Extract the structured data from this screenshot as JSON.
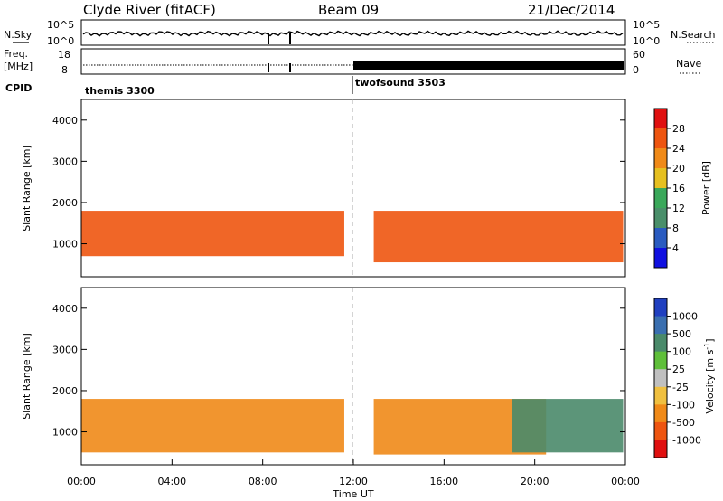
{
  "header": {
    "station": "Clyde River (fitACF)",
    "beam": "Beam 09",
    "date": "21/Dec/2014"
  },
  "aux_panels": {
    "nsky_label": "N.Sky",
    "nsky_ticks": [
      "10^5",
      "10^0"
    ],
    "nsearch_label": "N.Search",
    "nsearch_ticks": [
      "10^5",
      "10^0"
    ],
    "freq_label": "Freq.",
    "freq_unit": "[MHz]",
    "freq_ticks": [
      "18",
      "8"
    ],
    "nave_label": "Nave",
    "nave_ticks": [
      "60",
      "0"
    ],
    "cpid_label": "CPID",
    "cpid_segments": [
      {
        "name": "themis 3300",
        "start_hour": 0
      },
      {
        "name": "twofsound 3503",
        "start_hour": 12
      }
    ]
  },
  "chart_data": [
    {
      "type": "heatmap",
      "quantity": "Power",
      "ylabel": "Slant Range [km]",
      "xlim": [
        0,
        24
      ],
      "ylim": [
        200,
        4500
      ],
      "yticks": [
        1000,
        2000,
        3000,
        4000
      ],
      "colorbar": {
        "label": "Power [dB]",
        "ticks": [
          "4",
          "8",
          "12",
          "16",
          "20",
          "24",
          "28"
        ],
        "colors": [
          "#1010e0",
          "#2a5bc0",
          "#4a8f6a",
          "#3aa85a",
          "#e6c020",
          "#f08a18",
          "#ee5510",
          "#e01010"
        ]
      },
      "bands": [
        {
          "x_start": 0,
          "x_end": 11.6,
          "range_low": 700,
          "range_high": 1800,
          "value": 26
        },
        {
          "x_start": 12.9,
          "x_end": 23.9,
          "range_low": 550,
          "range_high": 1800,
          "value": 26
        }
      ]
    },
    {
      "type": "heatmap",
      "quantity": "Velocity",
      "ylabel": "Slant Range [km]",
      "xlabel": "Time UT",
      "xlim": [
        0,
        24
      ],
      "ylim": [
        200,
        4500
      ],
      "yticks": [
        1000,
        2000,
        3000,
        4000
      ],
      "xticks": [
        "00:00",
        "04:00",
        "08:00",
        "12:00",
        "16:00",
        "20:00",
        "00:00"
      ],
      "colorbar": {
        "label": "Velocity [m s",
        "label_superscript": "-1",
        "label_close": "]",
        "ticks": [
          "1000",
          "500",
          "100",
          "25",
          "-25",
          "-100",
          "-500",
          "-1000"
        ],
        "colors": [
          "#2040c0",
          "#3a6fb0",
          "#4a8a6a",
          "#5fbf3a",
          "#c0c0c0",
          "#f0c040",
          "#f08a18",
          "#ee5510",
          "#e01010"
        ]
      },
      "bands": [
        {
          "x_start": 0,
          "x_end": 11.6,
          "range_low": 500,
          "range_high": 1800,
          "value": -300
        },
        {
          "x_start": 12.9,
          "x_end": 20.5,
          "range_low": 450,
          "range_high": 1800,
          "value": -300
        },
        {
          "x_start": 19,
          "x_end": 23.9,
          "range_low": 500,
          "range_high": 1800,
          "value": 150
        }
      ]
    }
  ]
}
